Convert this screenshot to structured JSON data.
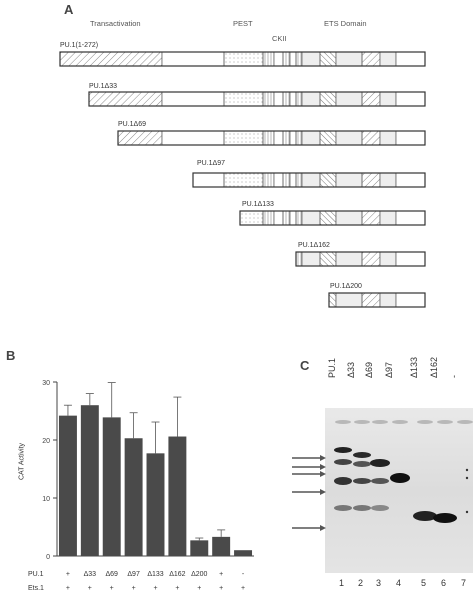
{
  "panel_a": {
    "letter": "A",
    "headers": {
      "transactivation": "Transactivation",
      "pest": "PEST",
      "ets": "ETS Domain",
      "ckii": "CKII"
    },
    "constructs": [
      "PU.1(1-272)",
      "PU.1Δ33",
      "PU.1Δ69",
      "PU.1Δ97",
      "PU.1Δ133",
      "PU.1Δ162",
      "PU.1Δ200"
    ]
  },
  "panel_b": {
    "letter": "B",
    "ylabel": "CAT Activity",
    "row_pu1": "PU.1",
    "row_ets1": "Ets.1",
    "pu1_marks": [
      "+",
      "Δ33",
      "Δ69",
      "Δ97",
      "Δ133",
      "Δ162",
      "Δ200",
      "+",
      "-"
    ],
    "ets1_marks": [
      "+",
      "+",
      "+",
      "+",
      "+",
      "+",
      "+",
      "+",
      "+"
    ]
  },
  "chart_data": {
    "type": "bar",
    "categories": [
      "+",
      "Δ33",
      "Δ69",
      "Δ97",
      "Δ133",
      "Δ162",
      "Δ200",
      "+",
      "-"
    ],
    "values": [
      24.2,
      26.0,
      23.9,
      20.3,
      17.7,
      20.6,
      2.7,
      3.3,
      1.0
    ],
    "errors": [
      1.8,
      2.0,
      6.0,
      4.4,
      5.4,
      6.8,
      0.4,
      1.2,
      0.0
    ],
    "ylim": [
      0,
      30
    ],
    "yticks": [
      "0",
      "10",
      "20",
      "30"
    ],
    "ylabel": "CAT Activity",
    "bar_color": "#4a4a4a"
  },
  "panel_c": {
    "letter": "C",
    "lane_labels": [
      "PU.1",
      "Δ33",
      "Δ69",
      "Δ97",
      "Δ133",
      "Δ162",
      "-"
    ],
    "lane_numbers": [
      "1",
      "2",
      "3",
      "4",
      "5",
      "6",
      "7"
    ]
  }
}
